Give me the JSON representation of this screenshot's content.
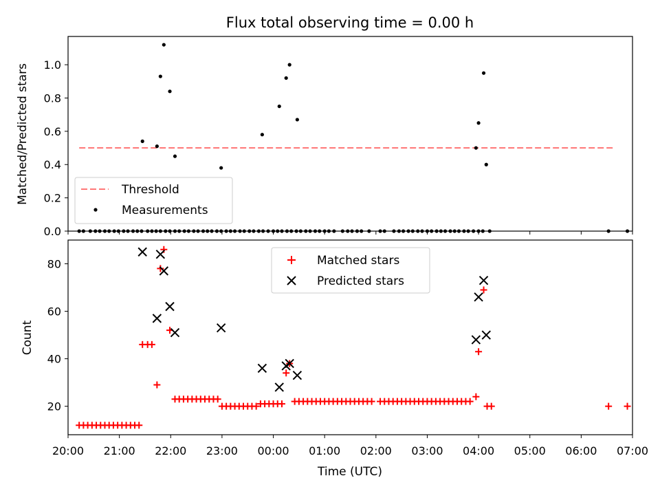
{
  "chart_data": [
    {
      "type": "scatter",
      "title": "Flux total observing time = 0.00 h",
      "xlabel": "",
      "ylabel": "Matched/Predicted stars",
      "xlim": [
        "20:00",
        "07:00"
      ],
      "ylim": [
        0,
        1.17
      ],
      "y_ticks": [
        "0.0",
        "0.2",
        "0.4",
        "0.6",
        "0.8",
        "1.0"
      ],
      "legend_position": "lower-left",
      "series": [
        {
          "name": "Threshold",
          "style": "dashed-line",
          "color": "#ff7777",
          "x": [
            "20:13",
            "06:40"
          ],
          "y": [
            0.5,
            0.5
          ]
        },
        {
          "name": "Measurements",
          "style": "dot",
          "color": "#000000",
          "x": [
            "20:13",
            "20:18",
            "20:26",
            "20:32",
            "20:37",
            "20:43",
            "20:48",
            "20:54",
            "20:59",
            "21:05",
            "21:10",
            "21:16",
            "21:21",
            "21:26",
            "21:33",
            "21:38",
            "21:43",
            "21:48",
            "21:54",
            "21:59",
            "22:05",
            "22:10",
            "22:16",
            "22:21",
            "22:27",
            "22:32",
            "22:38",
            "22:43",
            "22:48",
            "22:54",
            "22:59",
            "23:05",
            "23:10",
            "23:15",
            "23:21",
            "23:26",
            "23:32",
            "23:37",
            "23:43",
            "23:48",
            "23:54",
            "00:00",
            "00:05",
            "00:10",
            "00:16",
            "00:21",
            "00:27",
            "00:32",
            "00:38",
            "00:43",
            "00:49",
            "00:54",
            "01:00",
            "01:05",
            "01:11",
            "01:21",
            "01:27",
            "01:32",
            "01:38",
            "01:43",
            "01:52",
            "02:05",
            "02:10",
            "02:21",
            "02:27",
            "02:32",
            "02:38",
            "02:43",
            "02:49",
            "02:54",
            "03:00",
            "03:05",
            "03:11",
            "03:16",
            "03:21",
            "03:27",
            "03:32",
            "03:37",
            "03:43",
            "03:48",
            "03:54",
            "04:00",
            "04:05",
            "04:13",
            "06:32",
            "06:54",
            "21:27",
            "21:44",
            "21:48",
            "21:52",
            "21:59",
            "22:05",
            "22:59",
            "23:47",
            "00:07",
            "00:15",
            "00:19",
            "00:28",
            "03:57",
            "04:00",
            "04:06",
            "04:09"
          ],
          "y": [
            0,
            0,
            0,
            0,
            0,
            0,
            0,
            0,
            0,
            0,
            0,
            0,
            0,
            0,
            0,
            0,
            0,
            0,
            0,
            0,
            0,
            0,
            0,
            0,
            0,
            0,
            0,
            0,
            0,
            0,
            0,
            0,
            0,
            0,
            0,
            0,
            0,
            0,
            0,
            0,
            0,
            0,
            0,
            0,
            0,
            0,
            0,
            0,
            0,
            0,
            0,
            0,
            0,
            0,
            0,
            0,
            0,
            0,
            0,
            0,
            0,
            0,
            0,
            0,
            0,
            0,
            0,
            0,
            0,
            0,
            0,
            0,
            0,
            0,
            0,
            0,
            0,
            0,
            0,
            0,
            0,
            0,
            0,
            0,
            0,
            0,
            0.54,
            0.51,
            0.93,
            1.12,
            0.84,
            0.45,
            0.38,
            0.58,
            0.75,
            0.92,
            1.0,
            0.67,
            0.5,
            0.65,
            0.95,
            0.4
          ]
        }
      ]
    },
    {
      "type": "scatter",
      "title": "",
      "xlabel": "Time (UTC)",
      "ylabel": "Count",
      "xlim": [
        "20:00",
        "07:00"
      ],
      "ylim": [
        8,
        90
      ],
      "y_ticks": [
        "20",
        "40",
        "60",
        "80"
      ],
      "x_ticks": [
        "20:00",
        "21:00",
        "22:00",
        "23:00",
        "00:00",
        "01:00",
        "02:00",
        "03:00",
        "04:00",
        "05:00",
        "06:00",
        "07:00"
      ],
      "legend_position": "upper-center",
      "series": [
        {
          "name": "Matched stars",
          "marker": "+",
          "color": "#ff0000",
          "x": [
            "20:13",
            "20:18",
            "20:23",
            "20:28",
            "20:33",
            "20:38",
            "20:43",
            "20:48",
            "20:53",
            "20:58",
            "21:03",
            "21:08",
            "21:13",
            "21:18",
            "21:23",
            "21:27",
            "21:33",
            "21:38",
            "21:44",
            "21:48",
            "21:52",
            "21:59",
            "22:05",
            "22:10",
            "22:15",
            "22:20",
            "22:25",
            "22:30",
            "22:35",
            "22:40",
            "22:45",
            "22:50",
            "22:55",
            "23:00",
            "23:05",
            "23:10",
            "23:15",
            "23:20",
            "23:25",
            "23:30",
            "23:35",
            "23:40",
            "23:45",
            "23:50",
            "23:55",
            "00:00",
            "00:05",
            "00:10",
            "00:15",
            "00:19",
            "00:25",
            "00:30",
            "00:35",
            "00:40",
            "00:45",
            "00:50",
            "00:55",
            "01:00",
            "01:05",
            "01:10",
            "01:15",
            "01:20",
            "01:25",
            "01:30",
            "01:35",
            "01:40",
            "01:45",
            "01:50",
            "01:55",
            "02:05",
            "02:10",
            "02:15",
            "02:20",
            "02:25",
            "02:30",
            "02:35",
            "02:40",
            "02:45",
            "02:50",
            "02:55",
            "03:00",
            "03:05",
            "03:10",
            "03:15",
            "03:20",
            "03:25",
            "03:30",
            "03:35",
            "03:40",
            "03:45",
            "03:50",
            "03:57",
            "04:00",
            "04:06",
            "04:10",
            "04:15",
            "06:32",
            "06:54"
          ],
          "y": [
            12,
            12,
            12,
            12,
            12,
            12,
            12,
            12,
            12,
            12,
            12,
            12,
            12,
            12,
            12,
            46,
            46,
            46,
            29,
            78,
            86,
            52,
            23,
            23,
            23,
            23,
            23,
            23,
            23,
            23,
            23,
            23,
            23,
            20,
            20,
            20,
            20,
            20,
            20,
            20,
            20,
            20,
            21,
            21,
            21,
            21,
            21,
            21,
            34,
            38,
            22,
            22,
            22,
            22,
            22,
            22,
            22,
            22,
            22,
            22,
            22,
            22,
            22,
            22,
            22,
            22,
            22,
            22,
            22,
            22,
            22,
            22,
            22,
            22,
            22,
            22,
            22,
            22,
            22,
            22,
            22,
            22,
            22,
            22,
            22,
            22,
            22,
            22,
            22,
            22,
            22,
            24,
            43,
            69,
            20,
            20,
            20,
            20
          ]
        },
        {
          "name": "Predicted stars",
          "marker": "x",
          "color": "#000000",
          "x": [
            "21:27",
            "21:44",
            "21:48",
            "21:52",
            "21:59",
            "22:05",
            "22:59",
            "23:47",
            "00:07",
            "00:15",
            "00:19",
            "00:28",
            "03:57",
            "04:00",
            "04:06",
            "04:09"
          ],
          "y": [
            85,
            57,
            84,
            77,
            62,
            51,
            53,
            36,
            28,
            37,
            38,
            33,
            48,
            66,
            73,
            50
          ]
        }
      ]
    }
  ]
}
